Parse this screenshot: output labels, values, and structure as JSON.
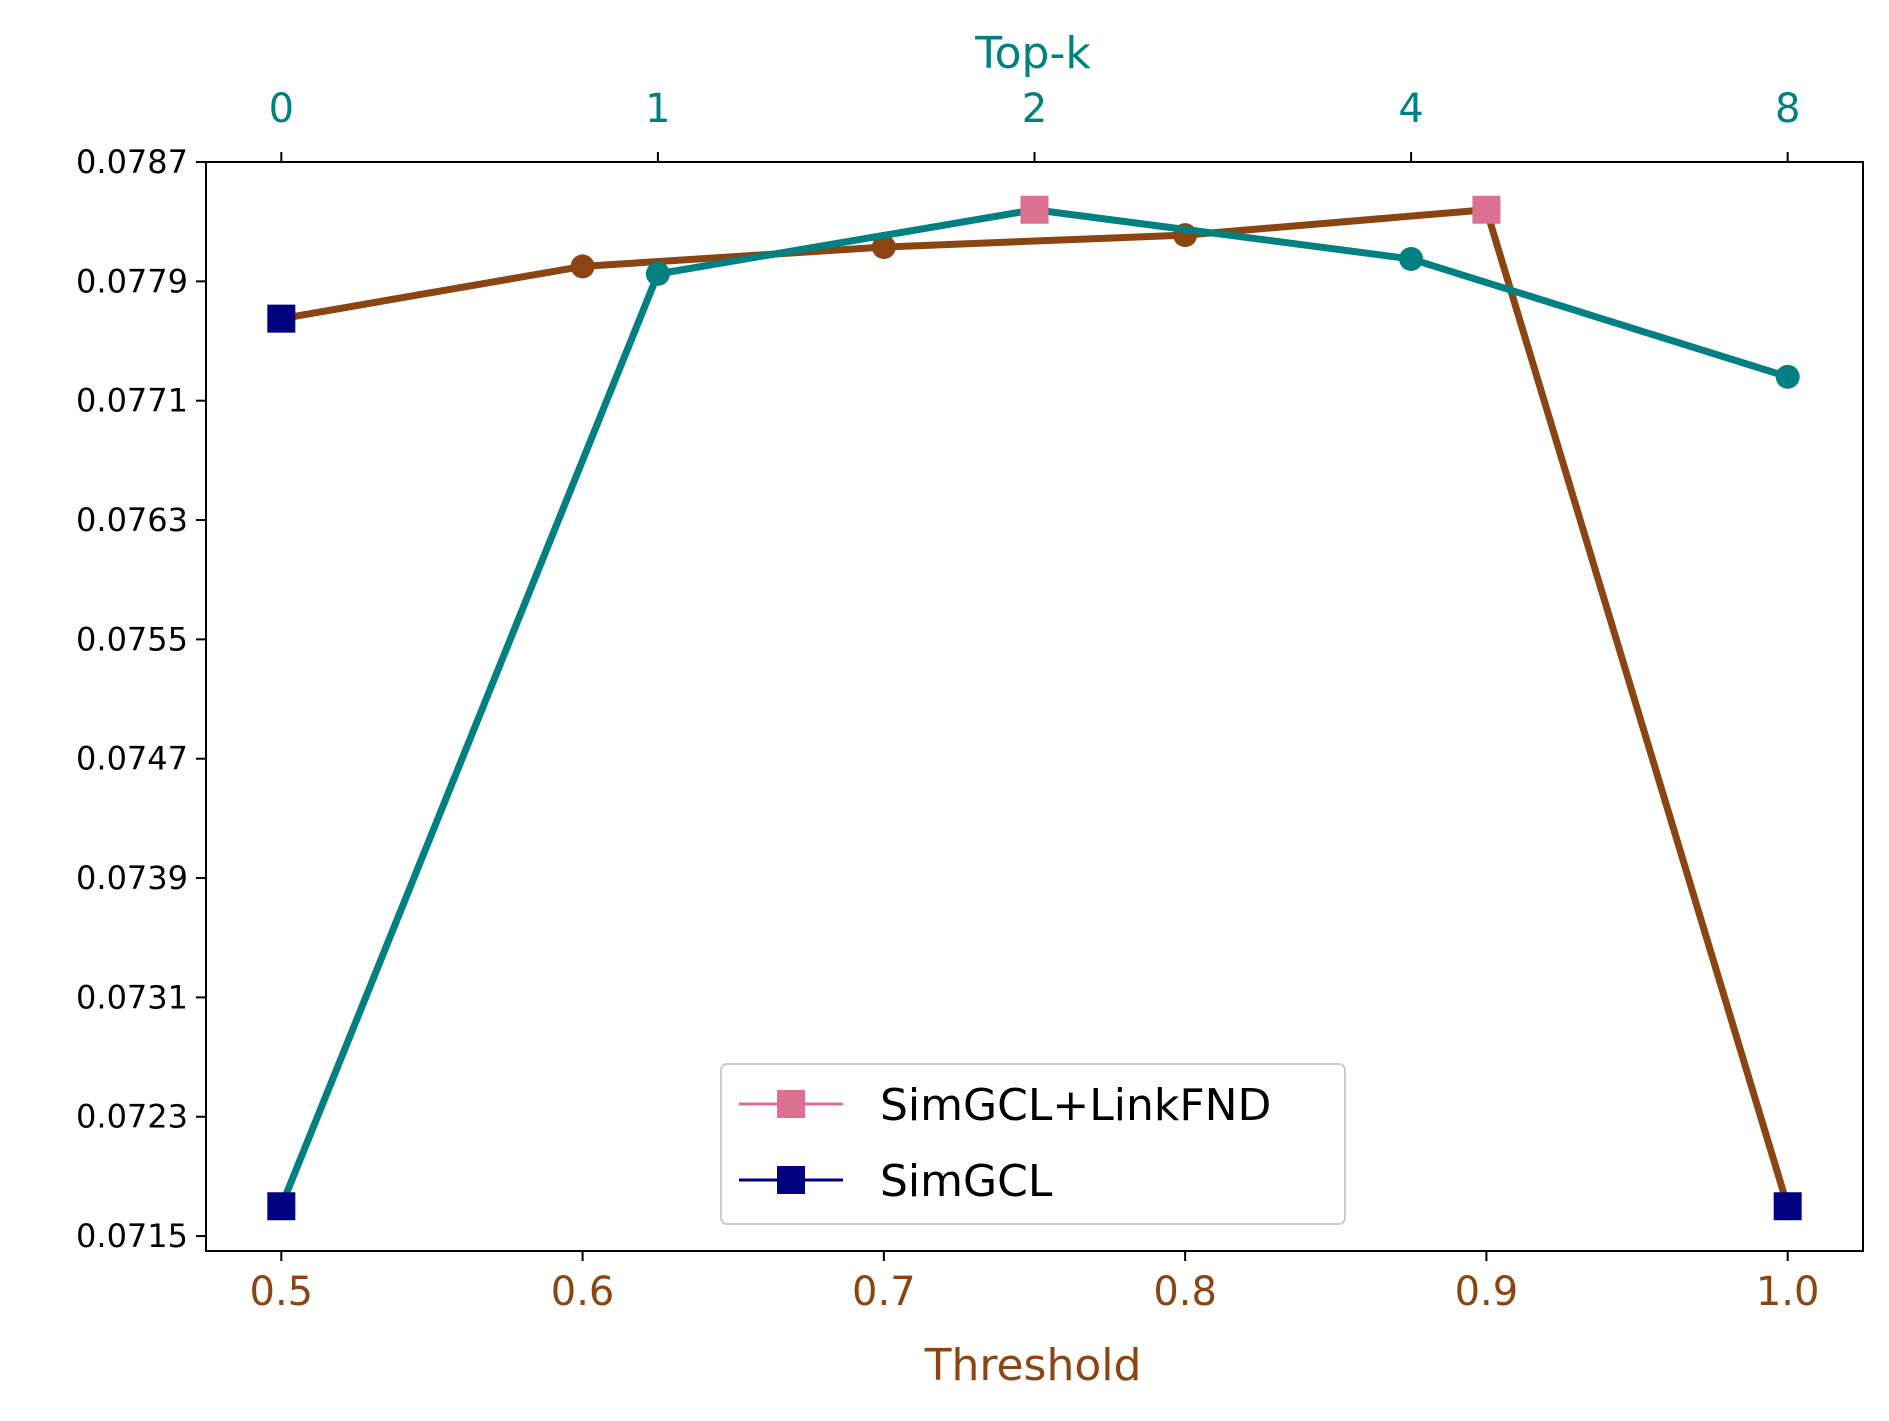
{
  "colors": {
    "threshold_series": "#8B4513",
    "topk_series": "#008080",
    "best_marker": "#DB7093",
    "baseline_marker": "#000080",
    "axis": "#000000"
  },
  "chart_data": {
    "type": "line",
    "y_ticks": [
      "0.0715",
      "0.0723",
      "0.0731",
      "0.0739",
      "0.0747",
      "0.0755",
      "0.0763",
      "0.0771",
      "0.0779",
      "0.0787"
    ],
    "ylim": [
      0.0714,
      0.0787
    ],
    "x_bottom": {
      "label": "Threshold",
      "ticks": [
        "0.5",
        "0.6",
        "0.7",
        "0.8",
        "0.9",
        "1.0"
      ],
      "tick_values": [
        0.5,
        0.6,
        0.7,
        0.8,
        0.9,
        1.0
      ],
      "range": [
        0.475,
        1.025
      ]
    },
    "x_top": {
      "label": "Top-k",
      "ticks": [
        "0",
        "1",
        "2",
        "4",
        "8"
      ]
    },
    "series": [
      {
        "axis": "bottom",
        "color_key": "threshold_series",
        "x": [
          0.5,
          0.6,
          0.7,
          0.8,
          0.9,
          1.0
        ],
        "y": [
          0.07765,
          0.078,
          0.07813,
          0.07821,
          0.07838,
          0.0717
        ],
        "markers": [
          "baseline",
          "circle",
          "circle",
          "circle",
          "best",
          "baseline"
        ]
      },
      {
        "axis": "top",
        "color_key": "topk_series",
        "x": [
          0,
          1,
          2,
          4,
          8
        ],
        "y": [
          0.0717,
          0.07795,
          0.07838,
          0.07805,
          0.07726
        ],
        "markers": [
          "baseline",
          "circle",
          "best",
          "circle",
          "circle"
        ]
      }
    ],
    "legend": {
      "placement": "lower-center",
      "entries": [
        {
          "label": "SimGCL+LinkFND",
          "marker": "best"
        },
        {
          "label": "SimGCL",
          "marker": "baseline"
        }
      ]
    },
    "grid": false
  }
}
